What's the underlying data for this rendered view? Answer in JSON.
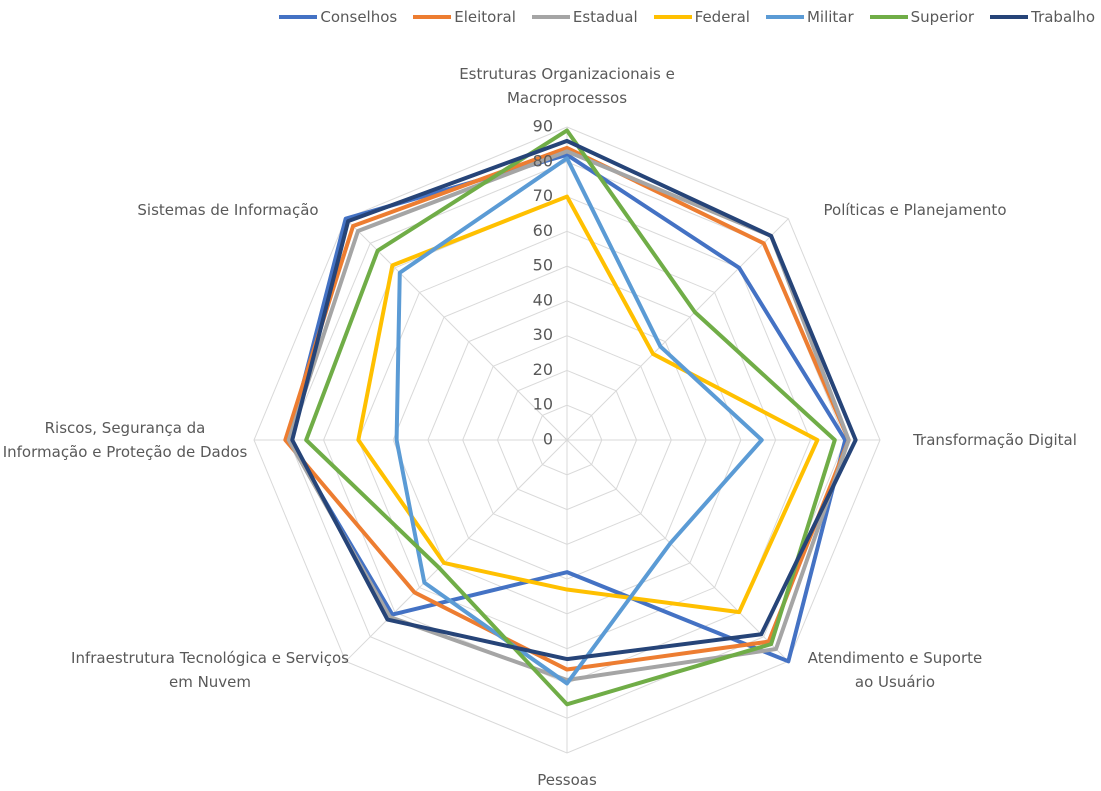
{
  "chart_data": {
    "type": "radar",
    "categories": [
      "Estruturas Organizacionais e Macroprocessos",
      "Políticas e Planejamento",
      "Transformação Digital",
      "Atendimento e Suporte ao Usuário",
      "Pessoas",
      "Infraestrutura Tecnológica e Serviços em Nuvem",
      "Riscos, Segurança da Informação e Proteção de Dados",
      "Sistemas de Informação"
    ],
    "series": [
      {
        "name": "Conselhos",
        "color": "#4472c4",
        "values": [
          82,
          70,
          80,
          90,
          38,
          71,
          80,
          90
        ]
      },
      {
        "name": "Eleitoral",
        "color": "#ed7d31",
        "values": [
          84,
          80,
          81,
          82,
          66,
          62,
          81,
          87
        ]
      },
      {
        "name": "Estadual",
        "color": "#a5a5a5",
        "values": [
          83,
          83,
          81,
          85,
          69,
          72,
          80,
          85
        ]
      },
      {
        "name": "Federal",
        "color": "#ffc000",
        "values": [
          70,
          35,
          72,
          70,
          43,
          50,
          60,
          71
        ]
      },
      {
        "name": "Militar",
        "color": "#5b9bd5",
        "values": [
          81,
          38,
          56,
          42,
          70,
          58,
          49,
          68
        ]
      },
      {
        "name": "Superior",
        "color": "#70ad47",
        "values": [
          89,
          52,
          77,
          83,
          76,
          52,
          75,
          77
        ]
      },
      {
        "name": "Trabalho",
        "color": "#264478",
        "values": [
          86,
          83,
          83,
          79,
          63,
          73,
          79,
          89
        ]
      }
    ],
    "rlim": [
      0,
      90
    ],
    "rticks": [
      0,
      10,
      20,
      30,
      40,
      50,
      60,
      70,
      80,
      90
    ],
    "grid": true,
    "legend": "top"
  }
}
